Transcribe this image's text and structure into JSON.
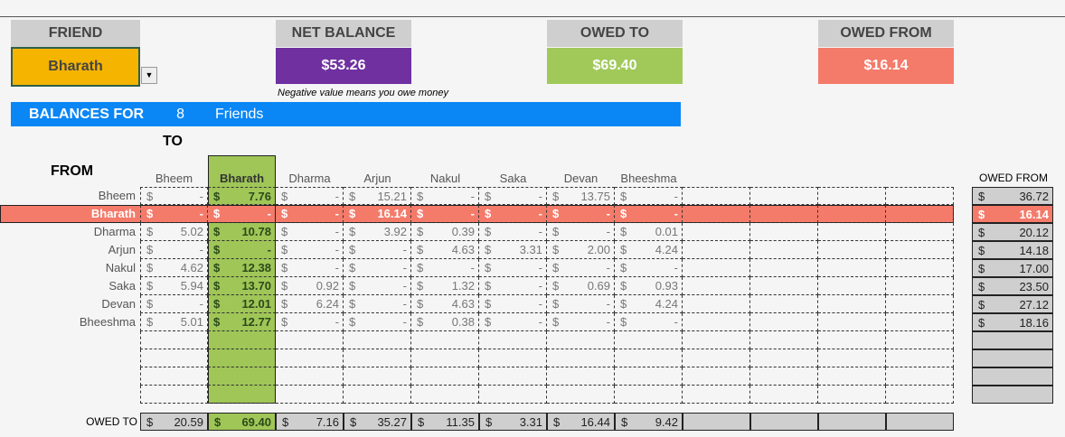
{
  "header": {
    "friend_label": "FRIEND",
    "friend_value": "Bharath",
    "net_label": "NET BALANCE",
    "net_value": "$53.26",
    "owed_to_label": "OWED TO",
    "owed_to_value": "$69.40",
    "owed_from_label": "OWED FROM",
    "owed_from_value": "$16.14",
    "note": "Negative value means you owe money"
  },
  "colors": {
    "friend": "#f5b400",
    "net": "#7030a0",
    "owed_to": "#a0c95a",
    "owed_from": "#f47a6a",
    "bar": "#0a86f5"
  },
  "banner": {
    "label": "BALANCES FOR",
    "count": "8",
    "suffix": "Friends"
  },
  "grid": {
    "to_label": "TO",
    "from_label": "FROM",
    "owed_to_row_label": "OWED TO",
    "owed_from_col_label": "OWED FROM",
    "currency": "$",
    "names": [
      "Bheem",
      "Bharath",
      "Dharma",
      "Arjun",
      "Nakul",
      "Saka",
      "Devan",
      "Bheeshma"
    ],
    "selected_index": 1,
    "rows": [
      [
        "-",
        "7.76",
        "-",
        "15.21",
        "-",
        "-",
        "13.75",
        "-"
      ],
      [
        "-",
        "-",
        "-",
        "16.14",
        "-",
        "-",
        "-",
        "-"
      ],
      [
        "5.02",
        "10.78",
        "-",
        "3.92",
        "0.39",
        "-",
        "-",
        "0.01"
      ],
      [
        "-",
        "-",
        "-",
        "-",
        "4.63",
        "3.31",
        "2.00",
        "4.24"
      ],
      [
        "4.62",
        "12.38",
        "-",
        "-",
        "-",
        "-",
        "-",
        "-"
      ],
      [
        "5.94",
        "13.70",
        "0.92",
        "-",
        "1.32",
        "-",
        "0.69",
        "0.93"
      ],
      [
        "-",
        "12.01",
        "6.24",
        "-",
        "4.63",
        "-",
        "-",
        "4.24"
      ],
      [
        "5.01",
        "12.77",
        "-",
        "-",
        "0.38",
        "-",
        "-",
        "-"
      ]
    ],
    "owed_from": [
      "36.72",
      "16.14",
      "20.12",
      "14.18",
      "17.00",
      "23.50",
      "27.12",
      "18.16"
    ],
    "owed_to": [
      "20.59",
      "69.40",
      "7.16",
      "35.27",
      "11.35",
      "3.31",
      "16.44",
      "9.42"
    ]
  }
}
